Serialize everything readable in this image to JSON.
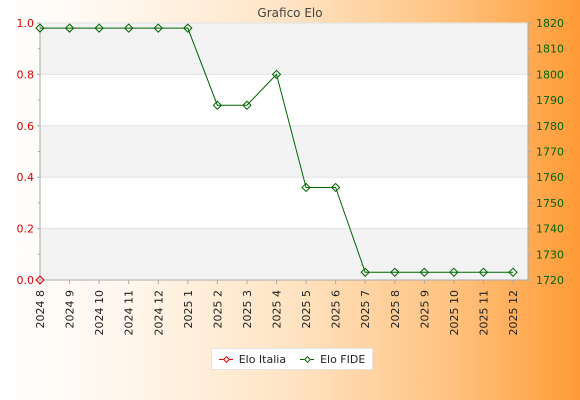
{
  "chart_data": {
    "type": "line",
    "title": "Grafico Elo",
    "categories": [
      "2024 8",
      "2024 9",
      "2024 10",
      "2024 11",
      "2024 12",
      "2025 1",
      "2025 2",
      "2025 3",
      "2025 4",
      "2025 5",
      "2025 6",
      "2025 7",
      "2025 8",
      "2025 9",
      "2025 10",
      "2025 11",
      "2025 12"
    ],
    "y_left": {
      "range": [
        0,
        1
      ],
      "ticks": [
        "0.0",
        "0.2",
        "0.4",
        "0.6",
        "0.8",
        "1.0"
      ],
      "color": "#dd0000"
    },
    "y_right": {
      "range": [
        1720,
        1820
      ],
      "ticks": [
        "1720",
        "1730",
        "1740",
        "1750",
        "1760",
        "1770",
        "1780",
        "1790",
        "1800",
        "1810",
        "1820"
      ],
      "color": "#006600"
    },
    "grid": "horizontal bands",
    "legend_placement": "bottom-center",
    "series": [
      {
        "name": "Elo Italia",
        "axis": "left",
        "color": "#dd0000",
        "values": [
          0,
          null,
          null,
          null,
          null,
          null,
          null,
          null,
          null,
          null,
          null,
          null,
          null,
          null,
          null,
          null,
          null
        ]
      },
      {
        "name": "Elo FIDE",
        "axis": "right",
        "color": "#006600",
        "values": [
          1818,
          1818,
          1818,
          1818,
          1818,
          1818,
          1788,
          1788,
          1800,
          1756,
          1756,
          1723,
          1723,
          1723,
          1723,
          1723,
          1723
        ]
      }
    ]
  }
}
